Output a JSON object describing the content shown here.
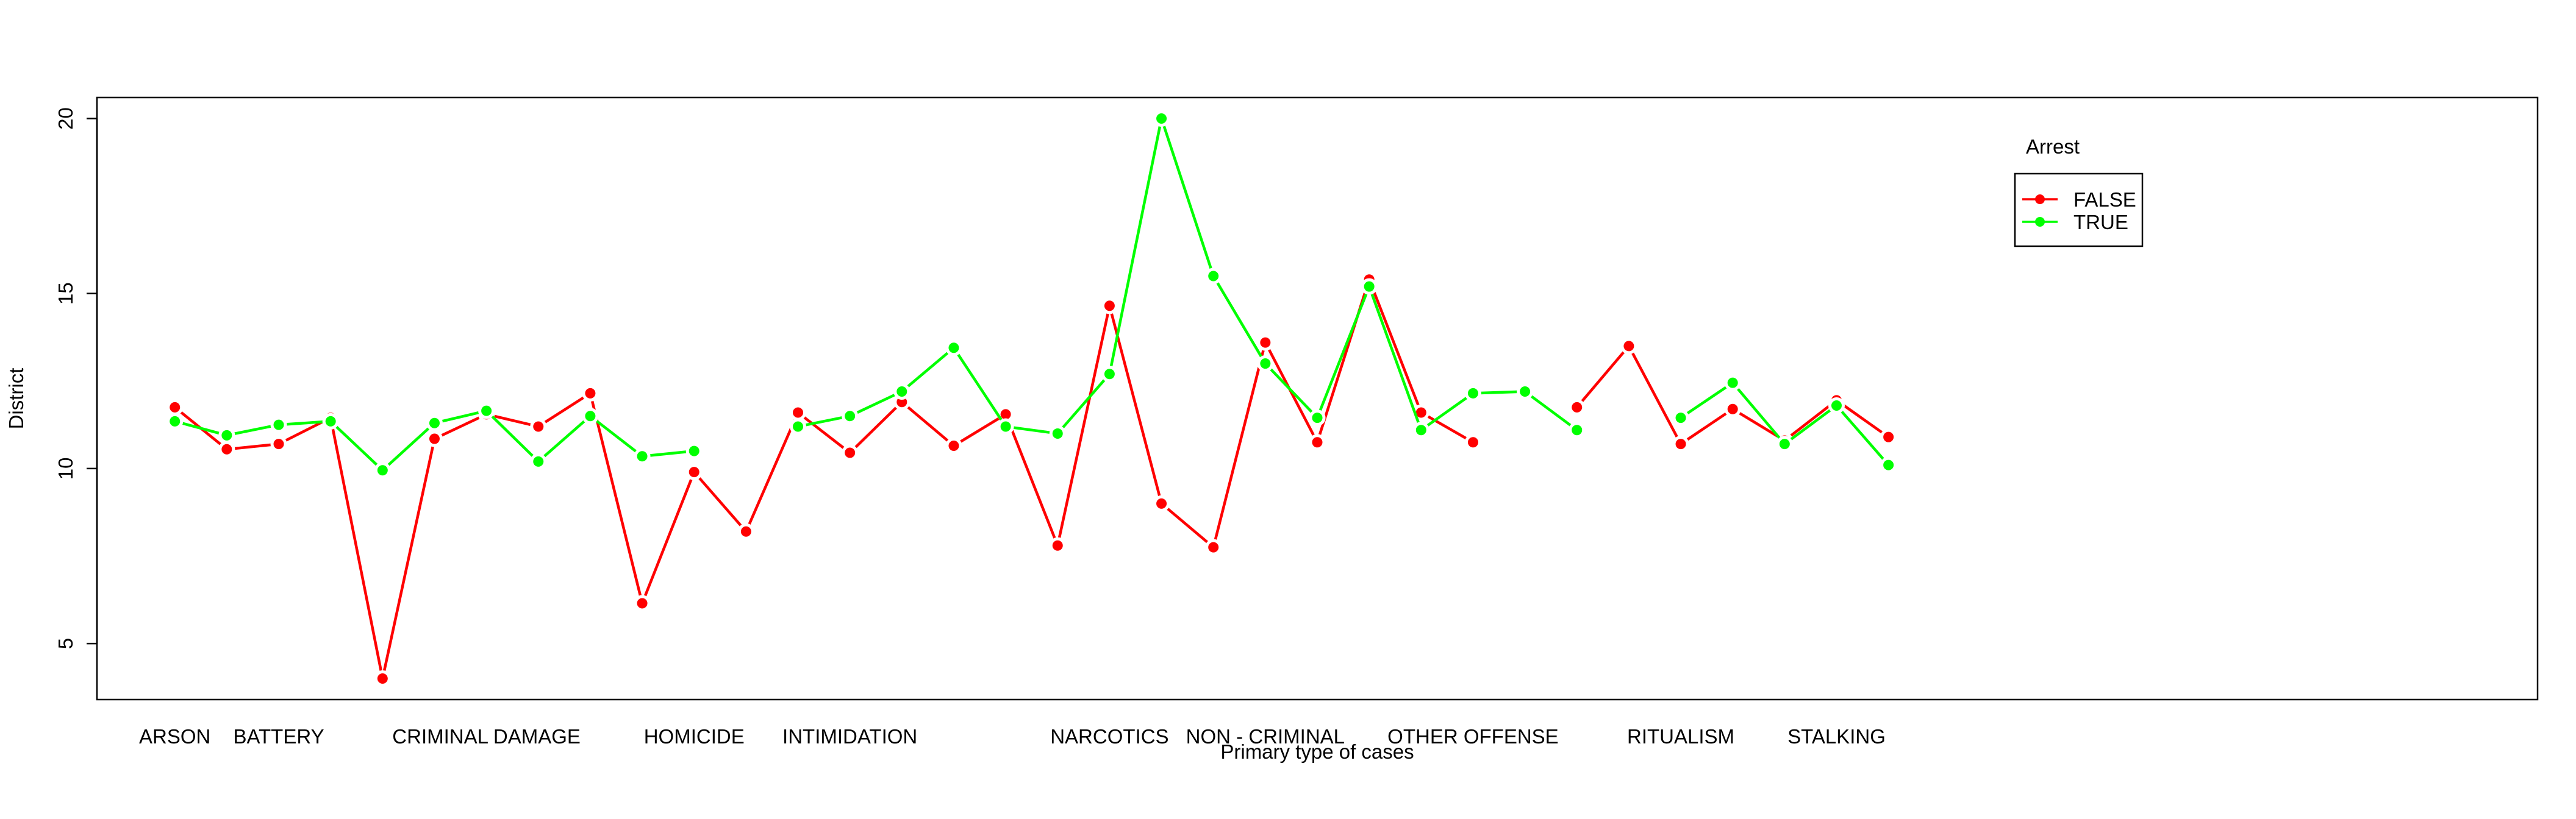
{
  "chart_data": {
    "type": "line",
    "xlabel": "Primary type of cases",
    "ylabel": "District",
    "x_tick_labels": [
      "ARSON",
      "BATTERY",
      "CRIMINAL DAMAGE",
      "HOMICIDE",
      "INTIMIDATION",
      "NARCOTICS",
      "NON - CRIMINAL",
      "OTHER OFFENSE",
      "RITUALISM",
      "STALKING"
    ],
    "x_tick_positions": [
      1,
      3,
      7,
      11,
      14,
      19,
      22,
      26,
      30,
      33
    ],
    "x_range": [
      -0.5,
      46.5
    ],
    "y_ticks": [
      5,
      10,
      15,
      20
    ],
    "ylim": [
      3.4,
      20.6
    ],
    "grid": false,
    "legend": {
      "title": "Arrest",
      "position": "top-right",
      "entries": [
        "FALSE",
        "TRUE"
      ]
    },
    "series": [
      {
        "name": "FALSE",
        "color": "#ff0000",
        "points": [
          [
            1,
            11.75
          ],
          [
            2,
            10.55
          ],
          [
            3,
            10.7
          ],
          [
            4,
            11.45
          ],
          [
            5,
            4.0
          ],
          [
            6,
            10.85
          ],
          [
            7,
            11.55
          ],
          [
            8,
            11.2
          ],
          [
            9,
            12.15
          ],
          [
            10,
            6.15
          ],
          [
            11,
            9.9
          ],
          [
            12,
            8.2
          ],
          [
            13,
            11.6
          ],
          [
            14,
            10.45
          ],
          [
            15,
            11.9
          ],
          [
            16,
            10.65
          ],
          [
            17,
            11.55
          ],
          [
            18,
            7.8
          ],
          [
            19,
            14.65
          ],
          [
            20,
            9.0
          ],
          [
            21,
            7.75
          ],
          [
            22,
            13.6
          ],
          [
            23,
            10.75
          ],
          [
            24,
            15.4
          ],
          [
            25,
            11.6
          ],
          [
            26,
            10.75
          ],
          null,
          [
            28,
            11.75
          ],
          [
            29,
            13.5
          ],
          [
            30,
            10.7
          ],
          [
            31,
            11.7
          ],
          [
            32,
            10.8
          ],
          [
            33,
            11.95
          ],
          [
            34,
            10.9
          ]
        ]
      },
      {
        "name": "TRUE",
        "color": "#00ff00",
        "points": [
          [
            1,
            11.35
          ],
          [
            2,
            10.95
          ],
          [
            3,
            11.25
          ],
          [
            4,
            11.35
          ],
          [
            5,
            9.95
          ],
          [
            6,
            11.3
          ],
          [
            7,
            11.65
          ],
          [
            8,
            10.2
          ],
          [
            9,
            11.5
          ],
          [
            10,
            10.35
          ],
          [
            11,
            10.5
          ],
          null,
          [
            13,
            11.2
          ],
          [
            14,
            11.5
          ],
          [
            15,
            12.2
          ],
          [
            16,
            13.45
          ],
          [
            17,
            11.2
          ],
          [
            18,
            11.0
          ],
          [
            19,
            12.7
          ],
          [
            20,
            20.0
          ],
          [
            21,
            15.5
          ],
          [
            22,
            13.0
          ],
          [
            23,
            11.45
          ],
          [
            24,
            15.2
          ],
          [
            25,
            11.1
          ],
          [
            26,
            12.15
          ],
          [
            27,
            12.2
          ],
          [
            28,
            11.1
          ],
          null,
          [
            30,
            11.45
          ],
          [
            31,
            12.45
          ],
          [
            32,
            10.7
          ],
          [
            33,
            11.8
          ],
          [
            34,
            10.1
          ]
        ]
      }
    ]
  }
}
